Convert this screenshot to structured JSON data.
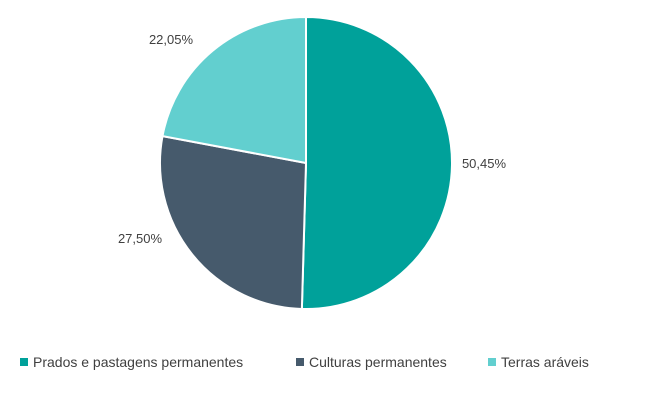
{
  "chart_data": {
    "type": "pie",
    "categories": [
      "Prados e pastagens permanentes",
      "Culturas permanentes",
      "Terras aráveis"
    ],
    "values": [
      50.45,
      27.5,
      22.05
    ],
    "data_labels": [
      "50,45%",
      "27,50%",
      "22,05%"
    ],
    "colors": [
      "#00a19a",
      "#465a6c",
      "#62cfcf"
    ],
    "legend_placement": "bottom",
    "start_angle_deg": 0,
    "direction": "clockwise"
  }
}
